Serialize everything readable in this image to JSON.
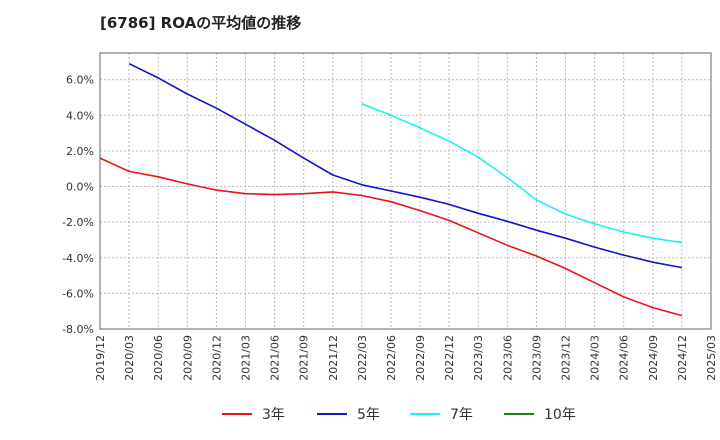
{
  "chart_data": {
    "type": "line",
    "title": "[6786]  ROAの平均値の推移",
    "x": [
      "2019/12",
      "2020/03",
      "2020/06",
      "2020/09",
      "2020/12",
      "2021/03",
      "2021/06",
      "2021/09",
      "2021/12",
      "2022/03",
      "2022/06",
      "2022/09",
      "2022/12",
      "2023/03",
      "2023/06",
      "2023/09",
      "2023/12",
      "2024/03",
      "2024/06",
      "2024/09",
      "2024/12",
      "2025/03"
    ],
    "ylim": [
      -8.0,
      7.5
    ],
    "yticks": [
      "6.0%",
      "4.0%",
      "2.0%",
      "0.0%",
      "-2.0%",
      "-4.0%",
      "-6.0%",
      "-8.0%"
    ],
    "ytick_values": [
      6,
      4,
      2,
      0,
      -2,
      -4,
      -6,
      -8
    ],
    "grid": true,
    "legend_position": "bottom",
    "series": [
      {
        "name": "3年",
        "color": "#e8141b",
        "values": [
          1.6,
          0.85,
          0.55,
          0.15,
          -0.2,
          -0.4,
          -0.45,
          -0.4,
          -0.3,
          -0.5,
          -0.85,
          -1.35,
          -1.9,
          -2.6,
          -3.3,
          -3.9,
          -4.6,
          -5.4,
          -6.2,
          -6.8,
          -7.25,
          null
        ]
      },
      {
        "name": "5年",
        "color": "#1414c8",
        "values": [
          null,
          6.9,
          6.1,
          5.2,
          4.4,
          3.5,
          2.6,
          1.6,
          0.65,
          0.1,
          -0.25,
          -0.6,
          -1.0,
          -1.5,
          -1.95,
          -2.45,
          -2.9,
          -3.4,
          -3.85,
          -4.25,
          -4.55,
          null
        ]
      },
      {
        "name": "7年",
        "color": "#1ef0f0",
        "values": [
          null,
          null,
          null,
          null,
          null,
          null,
          null,
          null,
          null,
          4.65,
          4.0,
          3.3,
          2.55,
          1.65,
          0.5,
          -0.75,
          -1.55,
          -2.1,
          -2.55,
          -2.9,
          -3.15,
          null
        ]
      },
      {
        "name": "10年",
        "color": "#138813",
        "values": [
          null,
          null,
          null,
          null,
          null,
          null,
          null,
          null,
          null,
          null,
          null,
          null,
          null,
          null,
          null,
          null,
          null,
          null,
          null,
          null,
          null,
          null
        ]
      }
    ]
  }
}
